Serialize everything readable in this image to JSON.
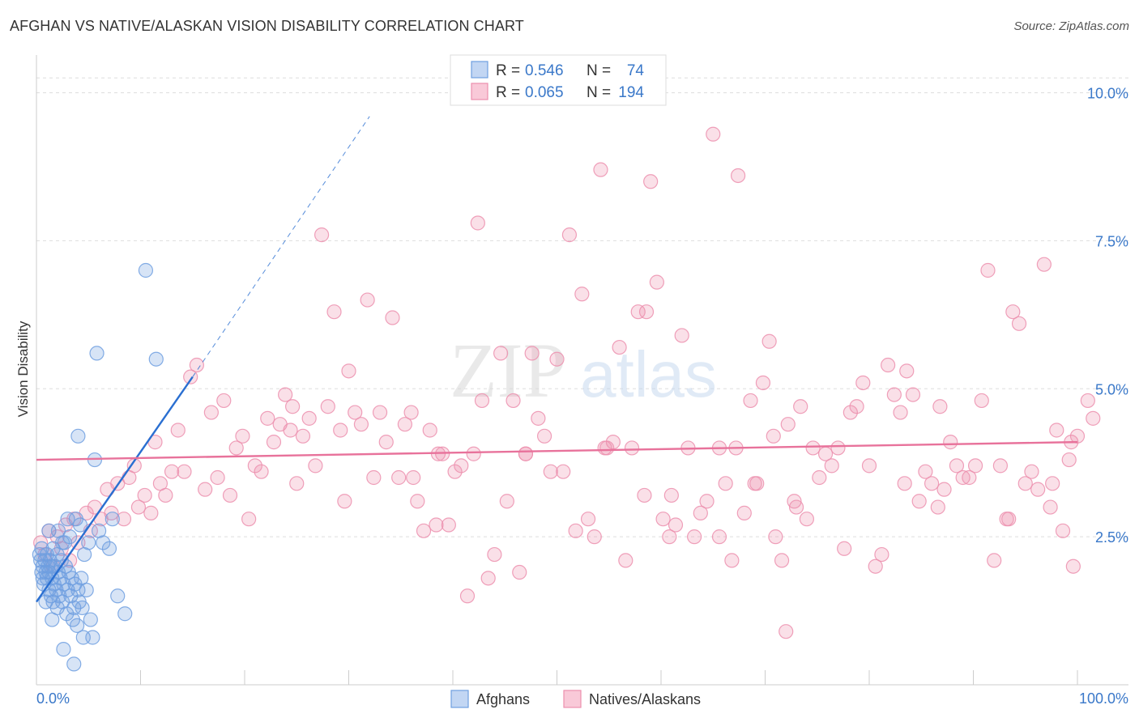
{
  "header": {
    "title": "AFGHAN VS NATIVE/ALASKAN VISION DISABILITY CORRELATION CHART",
    "source": "Source: ZipAtlas.com"
  },
  "watermark": {
    "zip": "ZIP",
    "atlas": "atlas"
  },
  "colors": {
    "blue": "#6f9fe0",
    "blue_line": "#2a6fd1",
    "pink": "#ec8fae",
    "pink_line": "#e8729b",
    "value_text": "#3a78c9",
    "grid": "#dddddd"
  },
  "chart_data": {
    "type": "scatter",
    "title": "AFGHAN VS NATIVE/ALASKAN VISION DISABILITY CORRELATION CHART",
    "xlabel": "",
    "ylabel": "Vision Disability",
    "xlim": [
      0,
      100
    ],
    "ylim": [
      0,
      10.5
    ],
    "x_tick_labels": [
      "0.0%",
      "100.0%"
    ],
    "y_ticks": [
      2.5,
      5.0,
      7.5,
      10.0
    ],
    "y_tick_labels": [
      "2.5%",
      "5.0%",
      "7.5%",
      "10.0%"
    ],
    "legend_position": "top-center",
    "stats": [
      {
        "r_label": "R =",
        "r_value": "0.546",
        "n_label": "N =",
        "n_value": "74"
      },
      {
        "r_label": "R =",
        "r_value": "0.065",
        "n_label": "N =",
        "n_value": "194"
      }
    ],
    "series": [
      {
        "name": "Afghans",
        "color": "#6f9fe0",
        "trend": {
          "x0": 0,
          "y0": 1.4,
          "x1": 15,
          "y1": 5.2,
          "dash_to_x": 32,
          "dash_to_y": 9.6
        },
        "points": [
          [
            0.3,
            2.2
          ],
          [
            0.4,
            2.1
          ],
          [
            0.5,
            1.9
          ],
          [
            0.5,
            2.3
          ],
          [
            0.6,
            1.8
          ],
          [
            0.6,
            2.0
          ],
          [
            0.7,
            1.7
          ],
          [
            0.8,
            2.1
          ],
          [
            0.9,
            1.9
          ],
          [
            1.0,
            2.2
          ],
          [
            1.0,
            1.8
          ],
          [
            1.1,
            2.0
          ],
          [
            1.2,
            1.6
          ],
          [
            1.2,
            1.9
          ],
          [
            1.3,
            2.1
          ],
          [
            1.4,
            1.5
          ],
          [
            1.4,
            2.0
          ],
          [
            1.5,
            1.8
          ],
          [
            1.6,
            1.4
          ],
          [
            1.6,
            2.3
          ],
          [
            1.7,
            1.7
          ],
          [
            1.8,
            2.0
          ],
          [
            1.9,
            1.6
          ],
          [
            2.0,
            1.3
          ],
          [
            2.0,
            2.2
          ],
          [
            2.1,
            1.9
          ],
          [
            2.2,
            1.5
          ],
          [
            2.3,
            1.8
          ],
          [
            2.4,
            2.1
          ],
          [
            2.5,
            1.4
          ],
          [
            2.6,
            1.7
          ],
          [
            2.7,
            2.4
          ],
          [
            2.8,
            2.0
          ],
          [
            2.9,
            1.2
          ],
          [
            3.0,
            1.6
          ],
          [
            3.1,
            1.9
          ],
          [
            3.2,
            2.5
          ],
          [
            3.3,
            1.5
          ],
          [
            3.4,
            1.8
          ],
          [
            3.5,
            1.1
          ],
          [
            3.6,
            1.3
          ],
          [
            3.7,
            1.7
          ],
          [
            3.8,
            2.8
          ],
          [
            3.9,
            1.0
          ],
          [
            4.0,
            1.6
          ],
          [
            4.1,
            1.4
          ],
          [
            4.2,
            2.7
          ],
          [
            4.3,
            1.8
          ],
          [
            4.4,
            1.3
          ],
          [
            4.5,
            0.8
          ],
          [
            4.6,
            2.2
          ],
          [
            4.8,
            1.6
          ],
          [
            5.0,
            2.4
          ],
          [
            5.2,
            1.1
          ],
          [
            5.4,
            0.8
          ],
          [
            5.6,
            3.8
          ],
          [
            5.8,
            5.6
          ],
          [
            6.0,
            2.6
          ],
          [
            6.4,
            2.4
          ],
          [
            7.0,
            2.3
          ],
          [
            7.3,
            2.8
          ],
          [
            7.8,
            1.5
          ],
          [
            8.5,
            1.2
          ],
          [
            10.5,
            7.0
          ],
          [
            11.5,
            5.5
          ],
          [
            1.2,
            2.6
          ],
          [
            2.1,
            2.6
          ],
          [
            0.9,
            1.4
          ],
          [
            2.6,
            0.6
          ],
          [
            3.6,
            0.35
          ],
          [
            1.5,
            1.1
          ],
          [
            2.5,
            2.4
          ],
          [
            3.0,
            2.8
          ],
          [
            4.0,
            4.2
          ]
        ]
      },
      {
        "name": "Natives/Alaskans",
        "color": "#ec8fae",
        "trend": {
          "x0": 0,
          "y0": 3.8,
          "x1": 100,
          "y1": 4.1
        },
        "points": [
          [
            0.4,
            2.4
          ],
          [
            0.8,
            2.2
          ],
          [
            1.2,
            2.6
          ],
          [
            1.6,
            2.0
          ],
          [
            2.0,
            2.5
          ],
          [
            2.4,
            2.3
          ],
          [
            2.8,
            2.7
          ],
          [
            3.2,
            2.1
          ],
          [
            3.6,
            2.8
          ],
          [
            4.0,
            2.4
          ],
          [
            4.8,
            2.9
          ],
          [
            5.2,
            2.6
          ],
          [
            5.6,
            3.0
          ],
          [
            6.2,
            2.8
          ],
          [
            6.8,
            3.3
          ],
          [
            7.2,
            2.9
          ],
          [
            7.8,
            3.4
          ],
          [
            8.4,
            2.8
          ],
          [
            8.9,
            3.5
          ],
          [
            9.4,
            3.7
          ],
          [
            9.8,
            3.0
          ],
          [
            10.4,
            3.2
          ],
          [
            11.0,
            2.9
          ],
          [
            11.4,
            4.1
          ],
          [
            11.9,
            3.4
          ],
          [
            12.4,
            3.2
          ],
          [
            13.0,
            3.6
          ],
          [
            13.6,
            4.3
          ],
          [
            14.2,
            3.6
          ],
          [
            14.8,
            5.2
          ],
          [
            15.4,
            5.4
          ],
          [
            16.2,
            3.3
          ],
          [
            16.8,
            4.6
          ],
          [
            17.4,
            3.5
          ],
          [
            18.0,
            4.8
          ],
          [
            18.6,
            3.2
          ],
          [
            19.2,
            4.0
          ],
          [
            19.8,
            4.2
          ],
          [
            20.4,
            2.8
          ],
          [
            21.0,
            3.7
          ],
          [
            21.6,
            3.6
          ],
          [
            22.2,
            4.5
          ],
          [
            22.8,
            4.1
          ],
          [
            23.4,
            4.4
          ],
          [
            23.9,
            4.9
          ],
          [
            24.4,
            4.3
          ],
          [
            25.0,
            3.4
          ],
          [
            25.6,
            4.2
          ],
          [
            26.2,
            4.5
          ],
          [
            26.8,
            3.7
          ],
          [
            27.4,
            7.6
          ],
          [
            28.0,
            4.7
          ],
          [
            28.6,
            6.3
          ],
          [
            29.2,
            4.3
          ],
          [
            29.6,
            3.1
          ],
          [
            30.0,
            5.3
          ],
          [
            30.6,
            4.6
          ],
          [
            31.2,
            4.4
          ],
          [
            31.8,
            6.5
          ],
          [
            32.4,
            3.5
          ],
          [
            33.0,
            4.6
          ],
          [
            33.6,
            4.1
          ],
          [
            34.2,
            6.2
          ],
          [
            34.8,
            3.5
          ],
          [
            35.4,
            4.4
          ],
          [
            36.0,
            4.6
          ],
          [
            36.6,
            3.1
          ],
          [
            37.2,
            2.6
          ],
          [
            37.8,
            4.3
          ],
          [
            38.4,
            2.7
          ],
          [
            39.0,
            3.9
          ],
          [
            39.6,
            2.7
          ],
          [
            40.2,
            3.6
          ],
          [
            40.8,
            3.7
          ],
          [
            41.4,
            1.5
          ],
          [
            42.0,
            3.9
          ],
          [
            42.4,
            7.8
          ],
          [
            42.8,
            4.8
          ],
          [
            43.4,
            1.8
          ],
          [
            44.0,
            2.2
          ],
          [
            44.6,
            5.6
          ],
          [
            45.2,
            3.1
          ],
          [
            45.8,
            4.8
          ],
          [
            46.4,
            1.9
          ],
          [
            47.0,
            3.9
          ],
          [
            47.6,
            5.6
          ],
          [
            48.2,
            4.5
          ],
          [
            48.8,
            4.2
          ],
          [
            49.4,
            3.6
          ],
          [
            50.0,
            5.5
          ],
          [
            50.6,
            3.6
          ],
          [
            51.2,
            7.6
          ],
          [
            51.8,
            2.6
          ],
          [
            52.4,
            6.6
          ],
          [
            53.0,
            2.8
          ],
          [
            53.6,
            2.5
          ],
          [
            54.2,
            8.7
          ],
          [
            54.8,
            4.0
          ],
          [
            55.4,
            4.1
          ],
          [
            56.0,
            5.7
          ],
          [
            56.6,
            2.1
          ],
          [
            57.2,
            4.0
          ],
          [
            57.8,
            6.3
          ],
          [
            58.4,
            3.2
          ],
          [
            59.0,
            8.5
          ],
          [
            59.6,
            6.8
          ],
          [
            60.2,
            2.8
          ],
          [
            60.8,
            2.5
          ],
          [
            61.4,
            2.7
          ],
          [
            62.0,
            5.9
          ],
          [
            62.6,
            4.0
          ],
          [
            63.2,
            2.5
          ],
          [
            63.8,
            2.9
          ],
          [
            64.4,
            3.1
          ],
          [
            65.0,
            9.3
          ],
          [
            65.6,
            2.5
          ],
          [
            66.2,
            3.4
          ],
          [
            66.8,
            2.1
          ],
          [
            67.4,
            8.6
          ],
          [
            68.0,
            2.9
          ],
          [
            68.6,
            4.8
          ],
          [
            69.2,
            3.4
          ],
          [
            69.8,
            5.1
          ],
          [
            70.4,
            5.8
          ],
          [
            71.0,
            2.5
          ],
          [
            71.6,
            2.1
          ],
          [
            72.2,
            4.4
          ],
          [
            72.8,
            3.1
          ],
          [
            73.4,
            4.7
          ],
          [
            74.0,
            2.8
          ],
          [
            74.6,
            4.0
          ],
          [
            75.2,
            3.5
          ],
          [
            75.8,
            3.9
          ],
          [
            76.4,
            3.7
          ],
          [
            77.0,
            4.0
          ],
          [
            77.6,
            2.3
          ],
          [
            78.2,
            4.6
          ],
          [
            78.8,
            4.7
          ],
          [
            79.4,
            5.1
          ],
          [
            80.0,
            3.7
          ],
          [
            80.6,
            2.0
          ],
          [
            81.2,
            2.2
          ],
          [
            81.8,
            5.4
          ],
          [
            82.4,
            4.9
          ],
          [
            83.0,
            4.6
          ],
          [
            83.6,
            5.3
          ],
          [
            84.2,
            4.9
          ],
          [
            84.8,
            3.1
          ],
          [
            85.4,
            3.6
          ],
          [
            86.0,
            3.4
          ],
          [
            86.6,
            3.0
          ],
          [
            87.2,
            3.3
          ],
          [
            87.8,
            4.1
          ],
          [
            88.4,
            3.7
          ],
          [
            89.0,
            3.5
          ],
          [
            89.6,
            3.5
          ],
          [
            90.2,
            3.7
          ],
          [
            90.8,
            4.8
          ],
          [
            91.4,
            7.0
          ],
          [
            92.0,
            2.1
          ],
          [
            92.6,
            3.7
          ],
          [
            93.2,
            2.8
          ],
          [
            93.8,
            6.3
          ],
          [
            94.4,
            6.1
          ],
          [
            95.0,
            3.4
          ],
          [
            95.6,
            3.6
          ],
          [
            96.2,
            3.3
          ],
          [
            96.8,
            7.1
          ],
          [
            97.4,
            3.0
          ],
          [
            98.0,
            4.3
          ],
          [
            98.6,
            2.6
          ],
          [
            99.2,
            3.8
          ],
          [
            99.6,
            2.0
          ],
          [
            100.0,
            4.2
          ],
          [
            58.6,
            6.3
          ],
          [
            38.6,
            3.9
          ],
          [
            47.0,
            3.9
          ],
          [
            72.0,
            0.9
          ],
          [
            54.6,
            4.0
          ],
          [
            24.6,
            4.7
          ],
          [
            65.6,
            4.0
          ],
          [
            86.8,
            4.7
          ],
          [
            61.0,
            3.2
          ],
          [
            69.0,
            3.4
          ],
          [
            73.0,
            3.0
          ],
          [
            83.4,
            3.4
          ],
          [
            93.4,
            2.8
          ],
          [
            97.6,
            3.4
          ],
          [
            101.0,
            4.8
          ],
          [
            101.5,
            4.5
          ],
          [
            99.4,
            4.1
          ],
          [
            67.2,
            4.0
          ],
          [
            70.8,
            4.2
          ],
          [
            36.2,
            3.5
          ]
        ]
      }
    ]
  }
}
